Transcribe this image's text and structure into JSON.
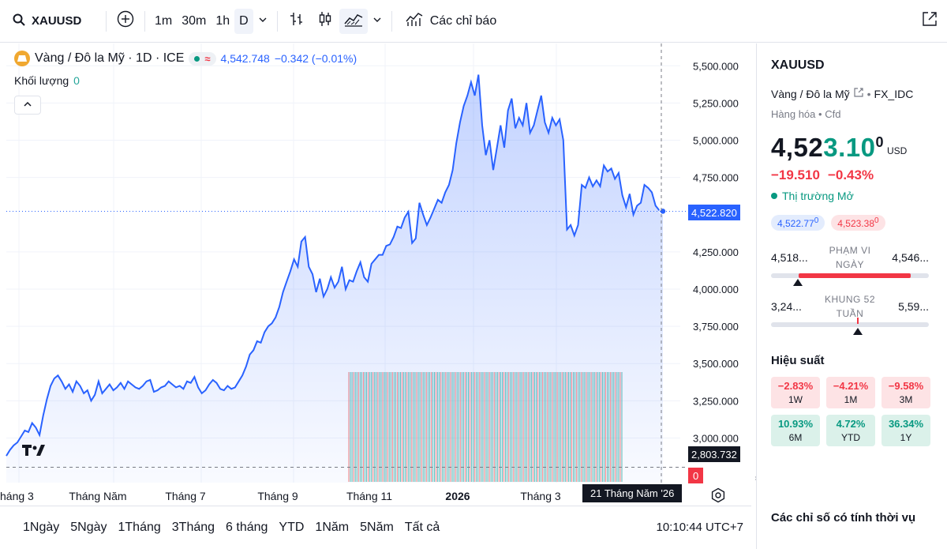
{
  "toolbar": {
    "symbol": "XAUUSD",
    "intervals": [
      "1m",
      "30m",
      "1h",
      "D"
    ],
    "active_interval": "D",
    "indicators_label": "Các chỉ báo"
  },
  "legend": {
    "title": "Vàng / Đô la Mỹ · 1D · ICE",
    "value": "4,542.748",
    "change": "−0.342 (−0.01%)",
    "volume_label": "Khối lượng",
    "volume_value": "0"
  },
  "chart_data": {
    "type": "area",
    "title": "Vàng / Đô la Mỹ · 1D · ICE",
    "x_labels": [
      "háng 3",
      "Tháng Năm",
      "Tháng 7",
      "Tháng 9",
      "Tháng 11",
      "2026",
      "Tháng 3"
    ],
    "y_ticks": [
      "5,500.000",
      "5,250.000",
      "5,000.000",
      "4,750.000",
      "4,250.000",
      "4,000.000",
      "3,750.000",
      "3,500.000",
      "3,250.000",
      "3,000.000"
    ],
    "ylim": [
      2700,
      5650
    ],
    "series": [
      {
        "values": [
          2880,
          2920,
          2950,
          2970,
          3010,
          3050,
          3040,
          3100,
          3070,
          3020,
          3150,
          3260,
          3350,
          3400,
          3420,
          3380,
          3330,
          3360,
          3310,
          3380,
          3350,
          3300,
          3320,
          3250,
          3290,
          3380,
          3300,
          3330,
          3360,
          3320,
          3340,
          3370,
          3330,
          3380,
          3360,
          3340,
          3330,
          3350,
          3380,
          3390,
          3310,
          3320,
          3340,
          3350,
          3380,
          3360,
          3340,
          3350,
          3330,
          3380,
          3370,
          3410,
          3340,
          3300,
          3320,
          3360,
          3390,
          3370,
          3330,
          3320,
          3350,
          3330,
          3340,
          3380,
          3420,
          3480,
          3560,
          3590,
          3650,
          3640,
          3710,
          3750,
          3770,
          3810,
          3880,
          3980,
          4050,
          4120,
          4200,
          4150,
          4320,
          4350,
          4150,
          4100,
          3980,
          4070,
          3950,
          4000,
          4080,
          4010,
          4050,
          4150,
          4000,
          4060,
          4050,
          4120,
          4180,
          4080,
          4050,
          4170,
          4200,
          4230,
          4230,
          4290,
          4300,
          4350,
          4420,
          4410,
          4480,
          4520,
          4310,
          4340,
          4580,
          4500,
          4430,
          4480,
          4540,
          4600,
          4580,
          4650,
          4700,
          4800,
          4980,
          5120,
          5230,
          5300,
          5390,
          5300,
          5440,
          5100,
          4900,
          5000,
          4800,
          4950,
          5100,
          4950,
          5200,
          5280,
          5080,
          5150,
          5100,
          5250,
          5050,
          5100,
          5200,
          5300,
          5120,
          5050,
          5150,
          5100,
          5140,
          5000,
          4400,
          4430,
          4360,
          4430,
          4700,
          4680,
          4750,
          4690,
          4730,
          4690,
          4830,
          4790,
          4810,
          4740,
          4780,
          4630,
          4550,
          4640,
          4500,
          4560,
          4580,
          4700,
          4680,
          4650,
          4560,
          4530,
          4523
        ]
      }
    ],
    "volume_bars": 170,
    "last_price": "4,522.820",
    "hline_price": "2,803.732",
    "volume_tag": "0",
    "date_marker": "21 Tháng Năm '26",
    "grid": true
  },
  "range_bar": {
    "items": [
      "1Ngày",
      "5Ngày",
      "1Tháng",
      "3Tháng",
      "6 tháng",
      "YTD",
      "1Năm",
      "5Năm",
      "Tất cả"
    ],
    "clock": "10:10:44 UTC+7"
  },
  "panel": {
    "symbol": "XAUUSD",
    "name": "Vàng / Đô la Mỹ",
    "source": "FX_IDC",
    "category": "Hàng hóa",
    "type": "Cfd",
    "price_main": "4,523.10",
    "price_bold": "4,52",
    "price_green": "3.10",
    "price_sup": "0",
    "currency": "USD",
    "change": "−19.510",
    "change_pct": "−0.43%",
    "market_status": "Thị trường Mở",
    "bid": "4,522.77",
    "bid_sup": "0",
    "ask": "4,523.38",
    "ask_sup": "0",
    "day_range": {
      "label": "PHẠM VI NGÀY",
      "low": "4,518...",
      "high": "4,546...",
      "position": 0.17
    },
    "year_range": {
      "label": "KHUNG 52 TUẦN",
      "low": "3,24...",
      "high": "5,59...",
      "position": 0.55
    },
    "performance_title": "Hiệu suất",
    "performance": [
      {
        "value": "−2.83%",
        "label": "1W",
        "dir": "neg"
      },
      {
        "value": "−4.21%",
        "label": "1M",
        "dir": "neg"
      },
      {
        "value": "−9.58%",
        "label": "3M",
        "dir": "neg"
      },
      {
        "value": "10.93%",
        "label": "6M",
        "dir": "pos"
      },
      {
        "value": "4.72%",
        "label": "YTD",
        "dir": "pos"
      },
      {
        "value": "36.34%",
        "label": "1Y",
        "dir": "pos"
      }
    ],
    "seasonal_title": "Các chỉ số có tính thời vụ"
  },
  "colors": {
    "line": "#2962ff",
    "up": "#26a69a",
    "down": "#ef5350",
    "negative": "#f23645",
    "positive": "#089981"
  }
}
